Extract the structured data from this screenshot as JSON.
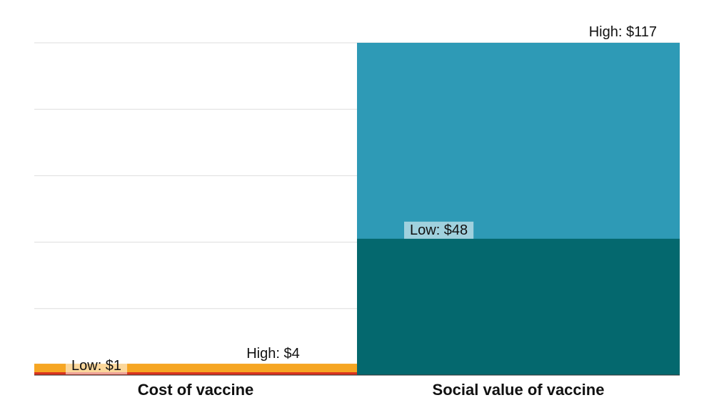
{
  "chart_data": {
    "type": "bar",
    "title": "",
    "xlabel": "",
    "ylabel": "",
    "ylim": [
      0,
      117
    ],
    "grid": true,
    "gridlines": [
      0,
      23.4,
      46.8,
      70.2,
      93.6,
      117
    ],
    "categories": [
      "Cost of vaccine",
      "Social value of vaccine"
    ],
    "bars": [
      {
        "category": "Cost of vaccine",
        "low": 1,
        "high": 4,
        "low_label": "Low: $1",
        "high_label": "High: $4",
        "low_color": "#d9341f",
        "high_color": "#f6a623"
      },
      {
        "category": "Social value of vaccine",
        "low": 48,
        "high": 117,
        "low_label": "Low: $48",
        "high_label": "High: $117",
        "low_color": "#04686e",
        "high_color": "#2e9ab6"
      }
    ]
  },
  "colors": {
    "grid": "#dddddd",
    "axis": "#333333",
    "label_bg": "#ffffff"
  }
}
